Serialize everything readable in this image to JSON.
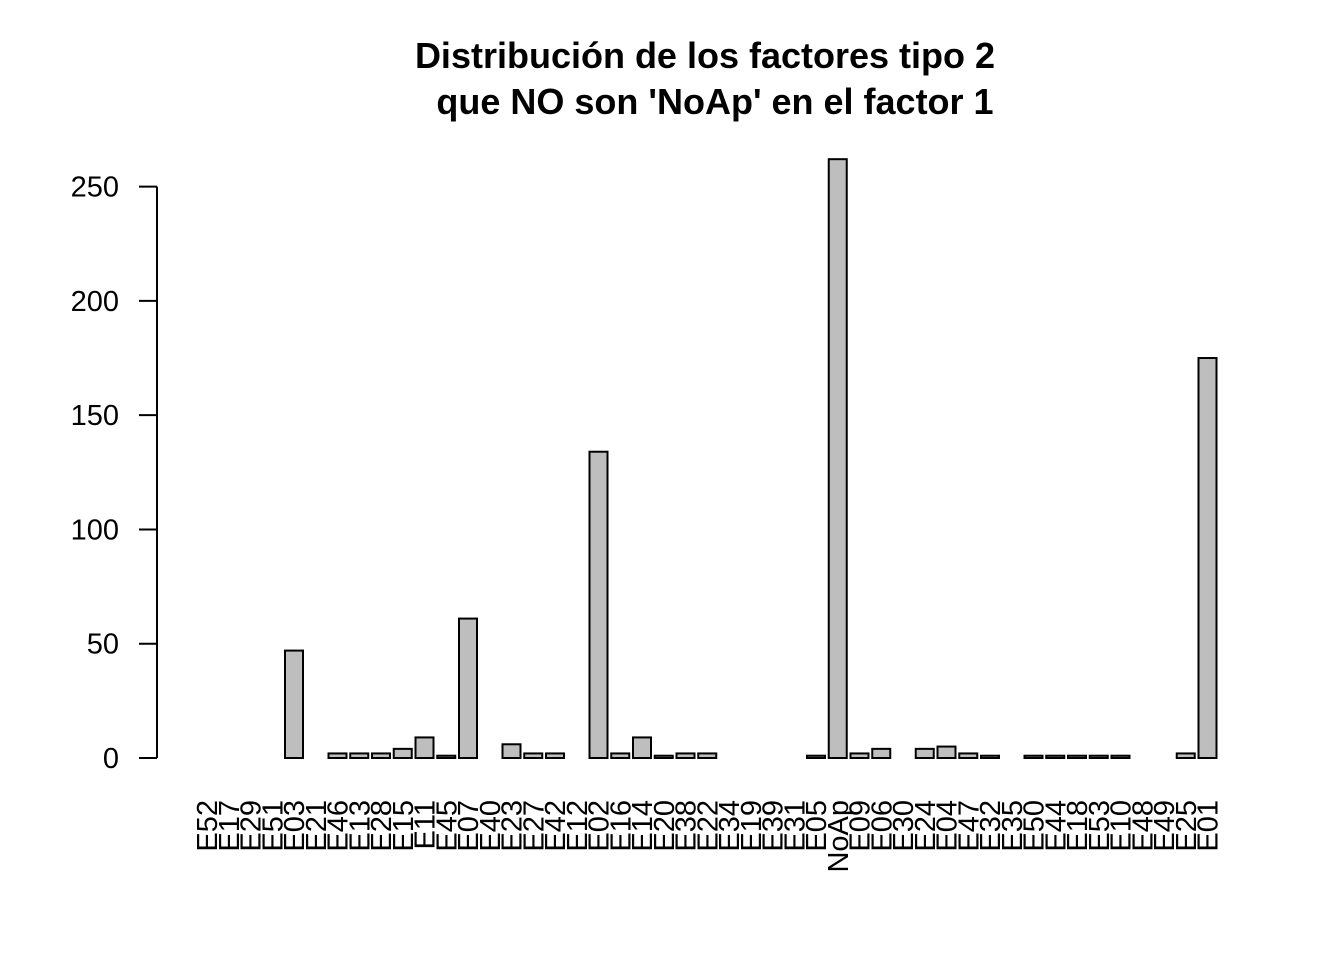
{
  "chart_data": {
    "type": "bar",
    "title_lines": [
      "Distribución de los factores tipo 2",
      "que NO son 'NoAp' en el factor 1"
    ],
    "xlabel": "",
    "ylabel": "",
    "ylim": [
      0,
      262
    ],
    "yticks": [
      0,
      50,
      100,
      150,
      200,
      250
    ],
    "categories": [
      "E52",
      "E17",
      "E29",
      "E51",
      "E03",
      "E21",
      "E46",
      "E13",
      "E28",
      "E15",
      "E11",
      "E45",
      "E07",
      "E40",
      "E23",
      "E27",
      "E42",
      "E12",
      "E02",
      "E16",
      "E14",
      "E20",
      "E38",
      "E22",
      "E34",
      "E19",
      "E39",
      "E31",
      "E05",
      "NoAp",
      "E09",
      "E06",
      "E30",
      "E24",
      "E04",
      "E47",
      "E32",
      "E35",
      "E50",
      "E44",
      "E18",
      "E53",
      "E10",
      "E48",
      "E49",
      "E25",
      "E01"
    ],
    "values": [
      0,
      0,
      0,
      0,
      47,
      0,
      2,
      2,
      2,
      4,
      9,
      1,
      61,
      0,
      6,
      2,
      2,
      0,
      134,
      2,
      9,
      1,
      2,
      2,
      0,
      0,
      0,
      0,
      1,
      262,
      2,
      4,
      0,
      4,
      5,
      2,
      1,
      0,
      1,
      1,
      1,
      1,
      1,
      0,
      0,
      2,
      175
    ],
    "bar_color": "#bebebe",
    "bar_border": "#000000",
    "grid": false,
    "legend": "none"
  }
}
